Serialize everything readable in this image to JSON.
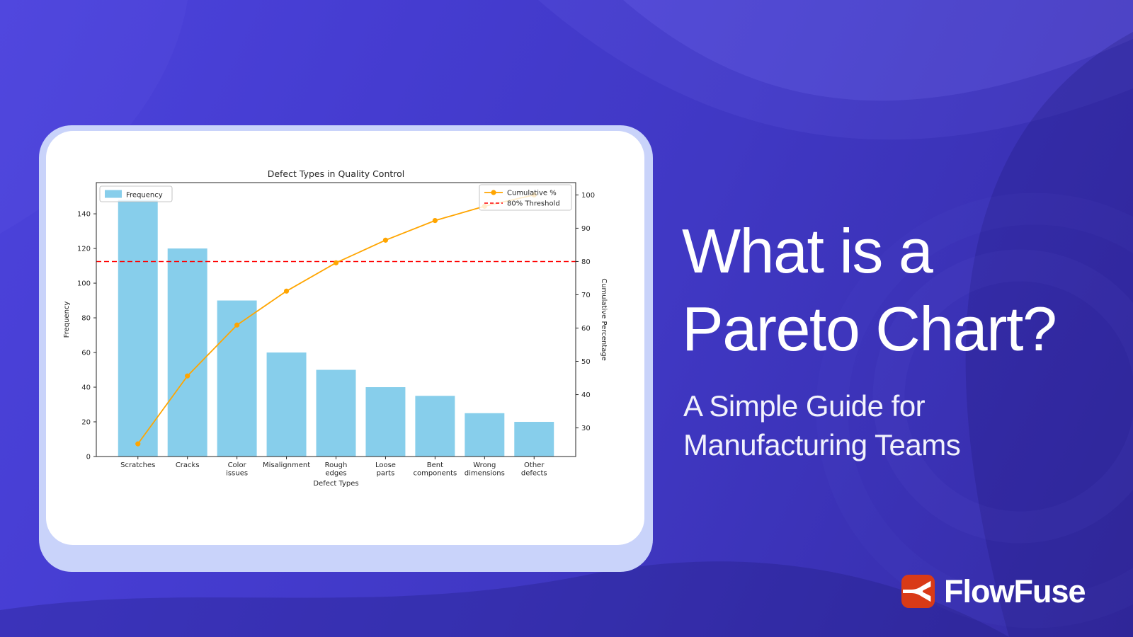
{
  "colors": {
    "background_indigo": "#4139C8",
    "card_shadow": "#C9D3FA",
    "card_background": "#FFFFFF",
    "bar_blue": "#87CEEB",
    "line_orange": "#FFA500",
    "threshold_red": "#FF0000",
    "brand_red": "#D93A17",
    "text_white": "#FFFFFF"
  },
  "headline": {
    "line1": "What is a",
    "line2": "Pareto Chart?",
    "subtitle_line1": "A Simple Guide for",
    "subtitle_line2": "Manufacturing Teams"
  },
  "brand": {
    "name": "FlowFuse",
    "icon": "flowfuse-fork-icon",
    "icon_bg": "#D93A17"
  },
  "chart_data": {
    "type": "pareto (bar + cumulative line)",
    "title": "Defect Types in Quality Control",
    "xlabel": "Defect Types",
    "ylabel_left": "Frequency",
    "ylabel_right": "Cumulative Percentage",
    "categories": [
      "Scratches",
      "Cracks",
      "Color issues",
      "Misalignment",
      "Rough edges",
      "Loose parts",
      "Bent components",
      "Wrong dimensions",
      "Other defects"
    ],
    "series": [
      {
        "name": "Frequency",
        "type": "bar",
        "axis": "left",
        "color": "#87CEEB",
        "values": [
          148,
          120,
          90,
          60,
          50,
          40,
          35,
          25,
          20
        ]
      },
      {
        "name": "Cumulative %",
        "type": "line",
        "axis": "right",
        "color": "#FFA500",
        "values": [
          25.2,
          45.6,
          60.9,
          71.1,
          79.6,
          86.4,
          92.3,
          96.6,
          100.0
        ]
      },
      {
        "name": "80% Threshold",
        "type": "threshold",
        "axis": "right",
        "color": "#FF0000",
        "value": 80
      }
    ],
    "left_axis": {
      "label": "Frequency",
      "ticks": [
        0,
        20,
        40,
        60,
        80,
        100,
        120,
        140
      ],
      "lim": [
        0,
        158
      ]
    },
    "right_axis": {
      "label": "Cumulative Percentage",
      "ticks": [
        30,
        40,
        50,
        60,
        70,
        80,
        90,
        100
      ],
      "lim": [
        21.4,
        103.7
      ]
    },
    "legend": {
      "left_entries": [
        "Frequency"
      ],
      "right_entries": [
        "Cumulative %",
        "80% Threshold"
      ],
      "left_position": "upper left",
      "right_position": "upper right"
    },
    "grid": false
  }
}
